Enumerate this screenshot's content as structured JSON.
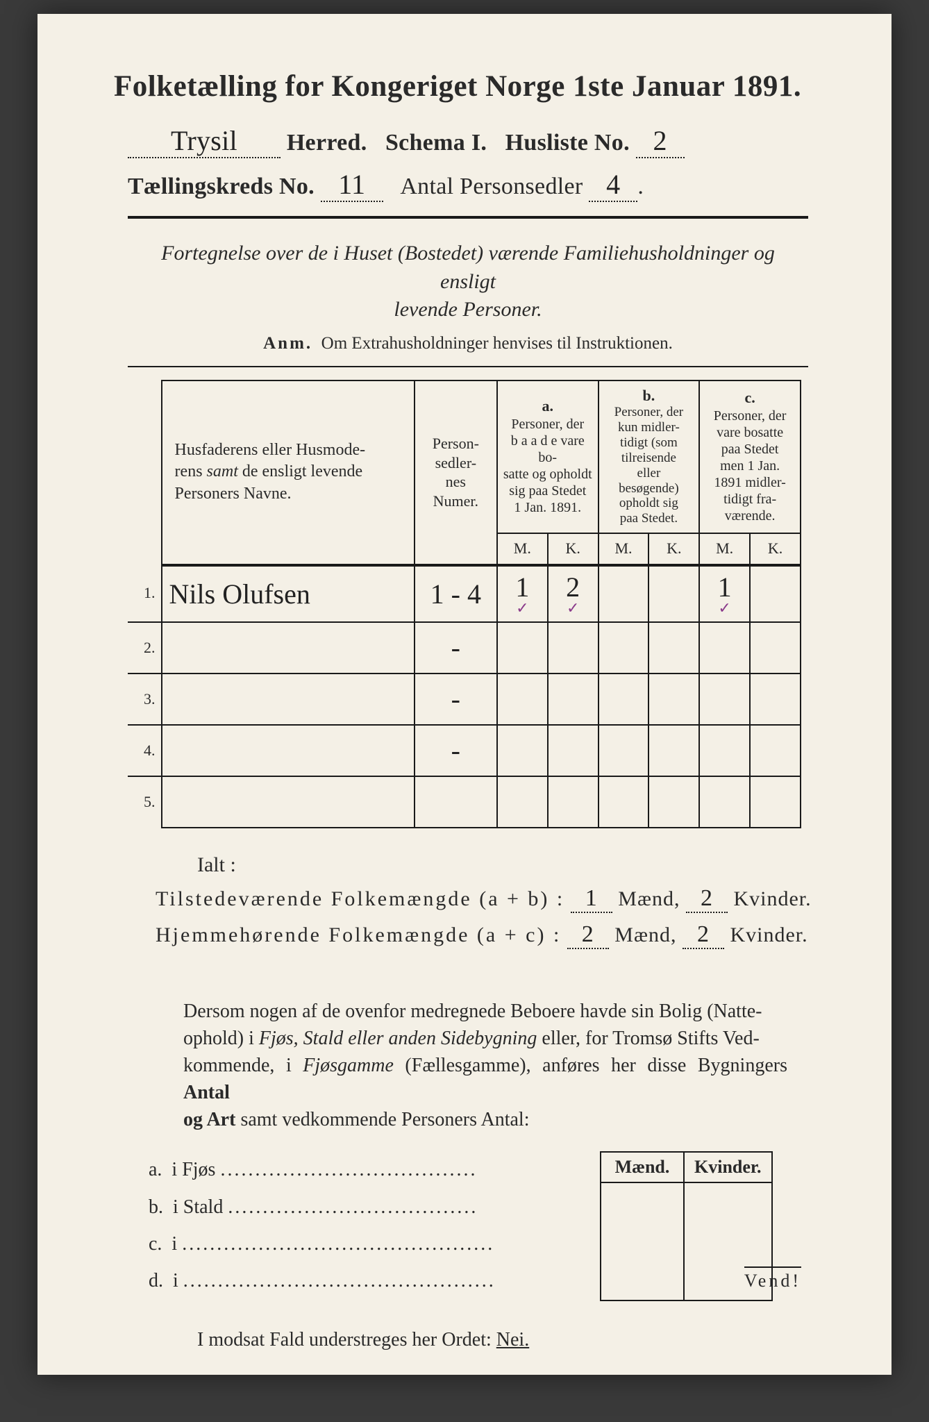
{
  "header": {
    "title": "Folketælling for Kongeriget Norge 1ste Januar 1891.",
    "herred_hand": "Trysil",
    "herred_label": "Herred.",
    "schema": "Schema I.",
    "husliste_label": "Husliste No.",
    "husliste_hand": "2",
    "kreds_label": "Tællingskreds No.",
    "kreds_hand": "11",
    "antal_label": "Antal Personsedler",
    "antal_hand": "4"
  },
  "desc": {
    "line1": "Fortegnelse over de i Huset (Bostedet) værende Familiehusholdninger og ensligt",
    "line2": "levende Personer.",
    "anm_label": "Anm.",
    "anm_text": "Om Extrahusholdninger henvises til Instruktionen."
  },
  "table": {
    "col_name": "Husfaderens eller Husmoderens samt de ensligt levende Personers Navne.",
    "col_ps": "Person-sedler-nes Numer.",
    "col_a_label": "a.",
    "col_a": "Personer, der baade vare bosatte og opholdt sig paa Stedet 1 Jan. 1891.",
    "col_b_label": "b.",
    "col_b": "Personer, der kun midlertidigt (som tilreisende eller besøgende) opholdt sig paa Stedet.",
    "col_c_label": "c.",
    "col_c": "Personer, der vare bosatte paa Stedet men 1 Jan. 1891 midlertidigt fraværende.",
    "mk_m": "M.",
    "mk_k": "K.",
    "rows": [
      {
        "n": "1.",
        "name": "Nils Olufsen",
        "ps": "1 - 4",
        "a_m": "1",
        "a_k": "2",
        "b_m": "",
        "b_k": "",
        "c_m": "1",
        "c_k": "",
        "checks": true
      },
      {
        "n": "2.",
        "name": "",
        "ps": "-",
        "a_m": "",
        "a_k": "",
        "b_m": "",
        "b_k": "",
        "c_m": "",
        "c_k": "",
        "checks": false
      },
      {
        "n": "3.",
        "name": "",
        "ps": "-",
        "a_m": "",
        "a_k": "",
        "b_m": "",
        "b_k": "",
        "c_m": "",
        "c_k": "",
        "checks": false
      },
      {
        "n": "4.",
        "name": "",
        "ps": "-",
        "a_m": "",
        "a_k": "",
        "b_m": "",
        "b_k": "",
        "c_m": "",
        "c_k": "",
        "checks": false
      },
      {
        "n": "5.",
        "name": "",
        "ps": "",
        "a_m": "",
        "a_k": "",
        "b_m": "",
        "b_k": "",
        "c_m": "",
        "c_k": "",
        "checks": false
      }
    ]
  },
  "totals": {
    "ialt": "Ialt :",
    "tilst_lbl": "Tilstedeværende Folkemængde (a + b) :",
    "tilst_m": "1",
    "tilst_k": "2",
    "hjem_lbl": "Hjemmehørende Folkemængde (a + c) :",
    "hjem_m": "2",
    "hjem_k": "2",
    "maend": "Mænd,",
    "kvinder": "Kvinder."
  },
  "para": "Dersom nogen af de ovenfor medregnede Beboere havde sin Bolig (Natteophold) i Fjøs, Stald eller anden Sidebygning eller, for Tromsø Stifts Vedkommende, i Fjøsgamme (Fællesgamme), anføres her disse Bygningers Antal og Art samt vedkommende Personers Antal:",
  "sidebyg": {
    "rows": [
      {
        "k": "a.",
        "lbl": "i    Fjøs"
      },
      {
        "k": "b.",
        "lbl": "i    Stald"
      },
      {
        "k": "c.",
        "lbl": "i"
      },
      {
        "k": "d.",
        "lbl": "i"
      }
    ],
    "hdr_m": "Mænd.",
    "hdr_k": "Kvinder."
  },
  "nei": {
    "text": "I modsat Fald understreges her Ordet:",
    "word": "Nei."
  },
  "vend": "Vend!",
  "colors": {
    "paper": "#f4f0e6",
    "ink": "#1a1a1a",
    "hand": "#222222",
    "check": "#8a3a8a",
    "bg": "#3a3a3a"
  }
}
